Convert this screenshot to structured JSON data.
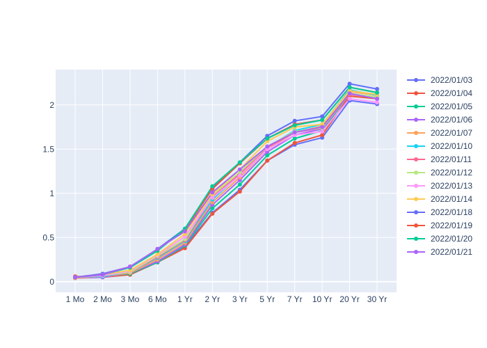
{
  "chart_data": {
    "type": "line",
    "title": "",
    "xlabel": "",
    "ylabel": "",
    "categories": [
      "1 Mo",
      "2 Mo",
      "3 Mo",
      "6 Mo",
      "1 Yr",
      "2 Yr",
      "3 Yr",
      "5 Yr",
      "7 Yr",
      "10 Yr",
      "20 Yr",
      "30 Yr"
    ],
    "ylim": [
      -0.12,
      2.4
    ],
    "yticks": [
      0,
      0.5,
      1,
      1.5,
      2
    ],
    "ytick_labels": [
      "0",
      "0.5",
      "1",
      "1.5",
      "2"
    ],
    "grid": true,
    "legend_position": "right",
    "series": [
      {
        "name": "2022/01/03",
        "color": "#636efa",
        "values": [
          0.05,
          0.06,
          0.08,
          0.22,
          0.4,
          0.78,
          1.04,
          1.37,
          1.55,
          1.63,
          2.05,
          2.01
        ]
      },
      {
        "name": "2022/01/04",
        "color": "#EF553B",
        "values": [
          0.06,
          0.05,
          0.08,
          0.22,
          0.38,
          0.77,
          1.02,
          1.37,
          1.57,
          1.66,
          2.1,
          2.07
        ]
      },
      {
        "name": "2022/01/05",
        "color": "#00cc96",
        "values": [
          0.05,
          0.06,
          0.09,
          0.22,
          0.41,
          0.83,
          1.1,
          1.43,
          1.62,
          1.71,
          2.12,
          2.09
        ]
      },
      {
        "name": "2022/01/06",
        "color": "#ab63fa",
        "values": [
          0.04,
          0.05,
          0.1,
          0.23,
          0.42,
          0.87,
          1.15,
          1.47,
          1.66,
          1.73,
          2.12,
          2.09
        ]
      },
      {
        "name": "2022/01/07",
        "color": "#FFA15A",
        "values": [
          0.04,
          0.06,
          0.1,
          0.25,
          0.44,
          0.9,
          1.18,
          1.5,
          1.69,
          1.76,
          2.15,
          2.11
        ]
      },
      {
        "name": "2022/01/10",
        "color": "#19d3f3",
        "values": [
          0.05,
          0.06,
          0.11,
          0.27,
          0.46,
          0.93,
          1.21,
          1.52,
          1.71,
          1.78,
          2.17,
          2.11
        ]
      },
      {
        "name": "2022/01/11",
        "color": "#FF6692",
        "values": [
          0.05,
          0.07,
          0.11,
          0.28,
          0.47,
          0.96,
          1.22,
          1.52,
          1.69,
          1.74,
          2.12,
          2.08
        ]
      },
      {
        "name": "2022/01/12",
        "color": "#B6E880",
        "values": [
          0.05,
          0.07,
          0.11,
          0.29,
          0.48,
          0.98,
          1.24,
          1.53,
          1.7,
          1.74,
          2.13,
          2.09
        ]
      },
      {
        "name": "2022/01/13",
        "color": "#FF97FF",
        "values": [
          0.05,
          0.07,
          0.12,
          0.3,
          0.51,
          0.95,
          1.2,
          1.5,
          1.66,
          1.7,
          2.07,
          2.03
        ]
      },
      {
        "name": "2022/01/14",
        "color": "#FECB52",
        "values": [
          0.05,
          0.08,
          0.13,
          0.31,
          0.54,
          0.99,
          1.27,
          1.59,
          1.75,
          1.78,
          2.16,
          2.12
        ]
      },
      {
        "name": "2022/01/18",
        "color": "#636efa",
        "values": [
          0.05,
          0.09,
          0.17,
          0.37,
          0.6,
          1.06,
          1.35,
          1.65,
          1.82,
          1.87,
          2.24,
          2.18
        ]
      },
      {
        "name": "2022/01/19",
        "color": "#EF553B",
        "values": [
          0.05,
          0.08,
          0.17,
          0.36,
          0.59,
          1.05,
          1.34,
          1.62,
          1.78,
          1.83,
          2.2,
          2.14
        ]
      },
      {
        "name": "2022/01/20",
        "color": "#00cc96",
        "values": [
          0.05,
          0.08,
          0.16,
          0.35,
          0.6,
          1.08,
          1.35,
          1.62,
          1.77,
          1.83,
          2.2,
          2.14
        ]
      },
      {
        "name": "2022/01/21",
        "color": "#ab63fa",
        "values": [
          0.05,
          0.08,
          0.17,
          0.37,
          0.57,
          1.01,
          1.27,
          1.53,
          1.69,
          1.75,
          2.13,
          2.07
        ]
      }
    ]
  }
}
